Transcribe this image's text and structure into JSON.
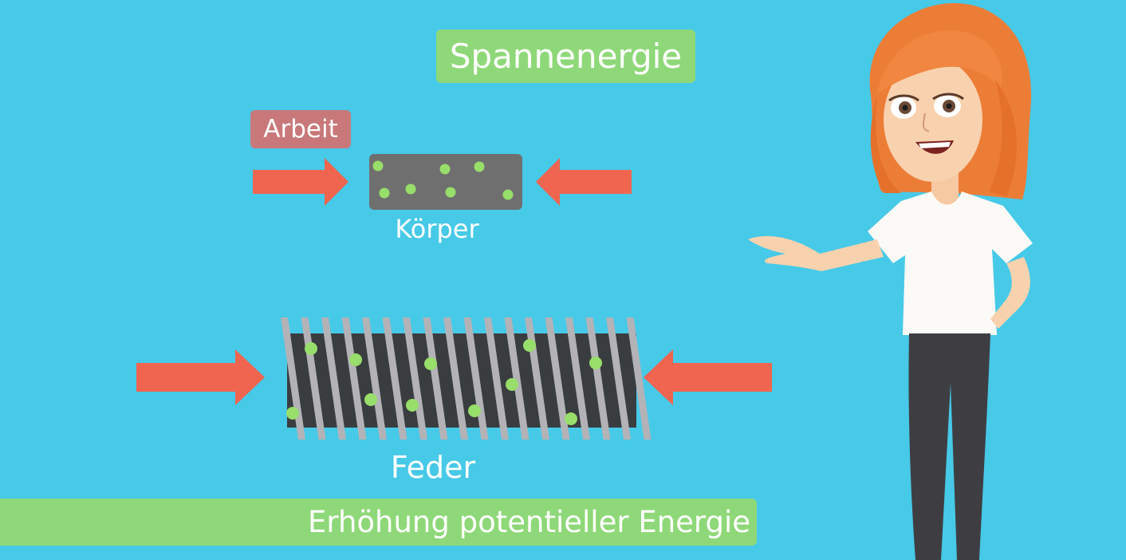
{
  "diagram": {
    "title": "Spannenergie",
    "work_label": "Arbeit",
    "body_label": "Körper",
    "spring_label": "Feder",
    "banner_text": "Erhöhung potentieller Energie"
  },
  "colors": {
    "background": "#47c9e8",
    "title_bg": "#8fd879",
    "work_bg": "#c9787a",
    "arrow": "#f06550",
    "particle": "#98de6a",
    "body_box": "#6f6f6f",
    "spring_coil": "#b3b3b7"
  },
  "icons": [
    "right-arrow-icon",
    "left-arrow-icon",
    "particle-dot",
    "spring-coil",
    "presenter-character"
  ]
}
